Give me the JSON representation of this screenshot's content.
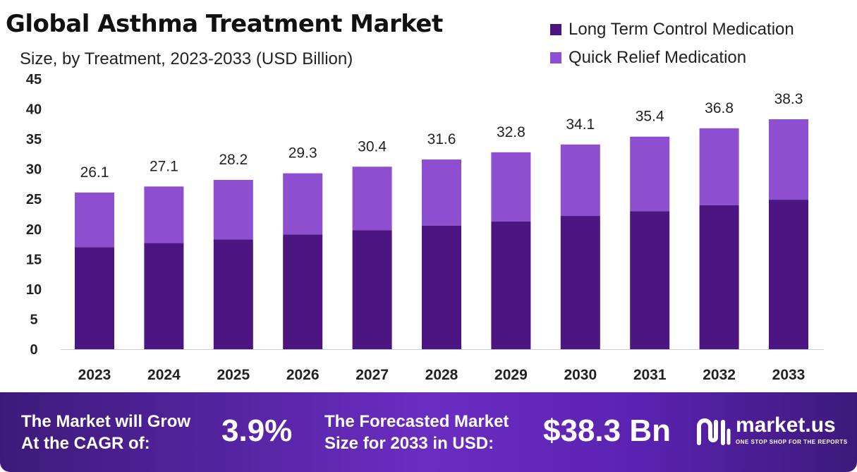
{
  "colors": {
    "long_term": "#4c1581",
    "quick_relief": "#8d4fcf",
    "footer_start": "#3d1a7a",
    "footer_mid": "#6a2dc2",
    "axis": "#cccccc"
  },
  "chart_data": {
    "type": "bar",
    "stacked": true,
    "title": "Global Asthma Treatment Market",
    "subtitle": "Size, by Treatment, 2023-2033 (USD Billion)",
    "categories": [
      "2023",
      "2024",
      "2025",
      "2026",
      "2027",
      "2028",
      "2029",
      "2030",
      "2031",
      "2032",
      "2033"
    ],
    "series": [
      {
        "name": "Long Term Control Medication",
        "values": [
          17.0,
          17.7,
          18.3,
          19.1,
          19.8,
          20.6,
          21.3,
          22.2,
          23.0,
          24.0,
          24.9
        ]
      },
      {
        "name": "Quick Relief Medication",
        "values": [
          9.1,
          9.4,
          9.9,
          10.2,
          10.6,
          11.0,
          11.5,
          11.9,
          12.4,
          12.8,
          13.4
        ]
      }
    ],
    "totals": [
      "26.1",
      "27.1",
      "28.2",
      "29.3",
      "30.4",
      "31.6",
      "32.8",
      "34.1",
      "35.4",
      "36.8",
      "38.3"
    ],
    "ylim": [
      0,
      45
    ],
    "yticks": [
      "0",
      "5",
      "10",
      "15",
      "20",
      "25",
      "30",
      "35",
      "40",
      "45"
    ],
    "xlabel": "",
    "ylabel": "",
    "grid": false,
    "legend_position": "top-right"
  },
  "footer": {
    "cagr_label_line1": "The Market will Grow",
    "cagr_label_line2": "At the CAGR of:",
    "cagr_value": "3.9%",
    "forecast_label_line1": "The Forecasted Market",
    "forecast_label_line2": "Size for 2033 in USD:",
    "forecast_value": "$38.3 Bn",
    "logo_name": "market.us",
    "logo_tagline": "ONE STOP SHOP FOR THE REPORTS",
    "logo_icon": "market-us-logo-icon"
  }
}
